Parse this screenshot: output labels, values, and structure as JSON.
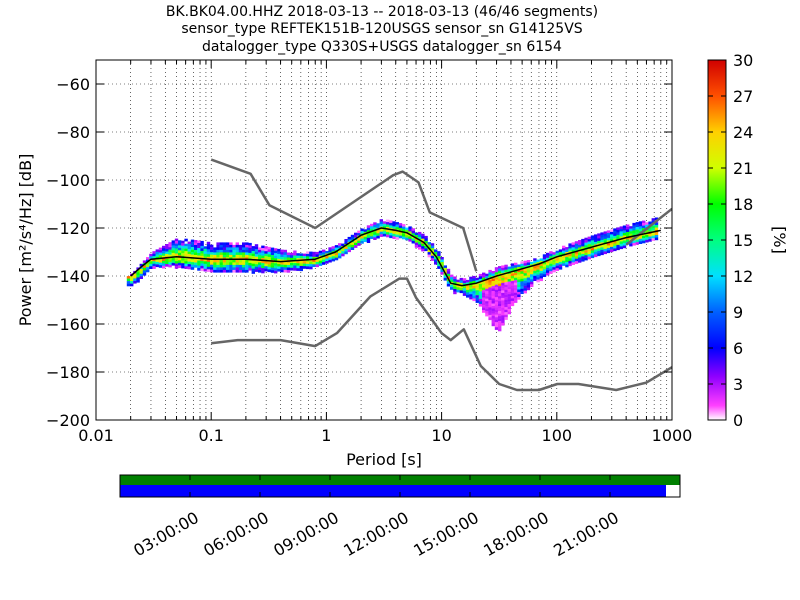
{
  "chart_data": {
    "type": "heatmap",
    "title_lines": [
      "BK.BK04.00.HHZ   2018-03-13 -- 2018-03-13  (46/46 segments)",
      "sensor_type REFTEK151B-120USGS sensor_sn G14125VS",
      "datalogger_type Q330S+USGS datalogger_sn 6154"
    ],
    "xlabel": "Period [s]",
    "ylabel": "Power [m²/s⁴/Hz] [dB]",
    "xscale": "log",
    "xlim": [
      0.01,
      1000
    ],
    "ylim": [
      -200,
      -50
    ],
    "x_ticks": [
      {
        "v": 0.01,
        "label": "0.01"
      },
      {
        "v": 0.1,
        "label": "0.1"
      },
      {
        "v": 1,
        "label": "1"
      },
      {
        "v": 10,
        "label": "10"
      },
      {
        "v": 100,
        "label": "100"
      },
      {
        "v": 1000,
        "label": "1000"
      }
    ],
    "y_ticks": [
      {
        "v": -60,
        "label": "−60"
      },
      {
        "v": -80,
        "label": "−80"
      },
      {
        "v": -100,
        "label": "−100"
      },
      {
        "v": -120,
        "label": "−120"
      },
      {
        "v": -140,
        "label": "−140"
      },
      {
        "v": -160,
        "label": "−160"
      },
      {
        "v": -180,
        "label": "−180"
      },
      {
        "v": -200,
        "label": "−200"
      }
    ],
    "grid": true,
    "colorbar": {
      "label": "[%]",
      "min": 0,
      "max": 30,
      "ticks": [
        {
          "v": 0,
          "label": "0"
        },
        {
          "v": 3,
          "label": "3"
        },
        {
          "v": 6,
          "label": "6"
        },
        {
          "v": 9,
          "label": "9"
        },
        {
          "v": 12,
          "label": "12"
        },
        {
          "v": 15,
          "label": "15"
        },
        {
          "v": 18,
          "label": "18"
        },
        {
          "v": 21,
          "label": "21"
        },
        {
          "v": 24,
          "label": "24"
        },
        {
          "v": 27,
          "label": "27"
        },
        {
          "v": 30,
          "label": "30"
        }
      ]
    },
    "series": [
      {
        "role": "noise-model-high",
        "color": "#666666",
        "x": [
          0.1,
          0.22,
          0.32,
          0.8,
          3.8,
          4.6,
          6.3,
          7.9,
          15.4,
          20
        ],
        "y": [
          -91.5,
          -97.4,
          -110.5,
          -120,
          -98,
          -96.5,
          -101,
          -113.5,
          -120,
          -138
        ]
      },
      {
        "role": "noise-model-high-tail",
        "color": "#666666",
        "x": [
          400,
          1000
        ],
        "y": [
          -127,
          -112
        ]
      },
      {
        "role": "noise-model-low",
        "color": "#666666",
        "x": [
          0.1,
          0.17,
          0.4,
          0.8,
          1.24,
          2.4,
          4.3,
          5,
          6,
          10,
          12,
          15.6,
          21.9,
          31.6,
          45,
          70,
          101,
          154,
          328,
          600,
          1000
        ],
        "y": [
          -168,
          -166.7,
          -166.7,
          -169.2,
          -163.7,
          -148.6,
          -141.1,
          -141.1,
          -149,
          -163.8,
          -166.7,
          -162.2,
          -177.5,
          -185,
          -187.5,
          -187.5,
          -185,
          -185,
          -187.5,
          -184.4,
          -178
        ]
      },
      {
        "role": "mode",
        "color": "#000000",
        "x": [
          0.02,
          0.025,
          0.03,
          0.05,
          0.1,
          0.2,
          0.4,
          0.8,
          1.2,
          2,
          3,
          4,
          5,
          7,
          9,
          12,
          15,
          20,
          30,
          50,
          70,
          100,
          200,
          400,
          800
        ],
        "y": [
          -140,
          -136,
          -133,
          -132,
          -133,
          -133,
          -134,
          -133,
          -130,
          -123,
          -120,
          -121,
          -122,
          -126,
          -132,
          -143,
          -144,
          -143,
          -140,
          -137,
          -135,
          -132,
          -128,
          -124,
          -121
        ]
      }
    ],
    "density_upper_offset": [
      [
        0.02,
        1
      ],
      [
        0.03,
        3
      ],
      [
        0.05,
        8
      ],
      [
        0.1,
        7
      ],
      [
        0.2,
        7
      ],
      [
        0.4,
        5
      ],
      [
        0.8,
        3
      ],
      [
        2,
        3
      ],
      [
        3,
        4
      ],
      [
        5,
        3
      ],
      [
        9,
        3
      ],
      [
        15,
        3
      ],
      [
        30,
        4
      ],
      [
        60,
        3
      ],
      [
        200,
        5
      ],
      [
        800,
        6
      ]
    ],
    "density_lower_offset": [
      [
        0.02,
        4
      ],
      [
        0.03,
        3
      ],
      [
        0.05,
        4
      ],
      [
        0.1,
        5
      ],
      [
        0.2,
        5
      ],
      [
        0.4,
        4
      ],
      [
        0.8,
        3
      ],
      [
        2,
        3
      ],
      [
        3,
        3
      ],
      [
        5,
        3
      ],
      [
        9,
        4
      ],
      [
        15,
        3
      ],
      [
        20,
        8
      ],
      [
        30,
        23
      ],
      [
        40,
        14
      ],
      [
        60,
        7
      ],
      [
        100,
        5
      ],
      [
        200,
        4
      ],
      [
        400,
        3
      ],
      [
        800,
        3
      ]
    ],
    "timeline": {
      "labels": [
        "03:00:00",
        "06:00:00",
        "09:00:00",
        "12:00:00",
        "15:00:00",
        "18:00:00",
        "21:00:00"
      ],
      "tick_hours": [
        3,
        6,
        9,
        12,
        15,
        18,
        21
      ],
      "span_hours": 24,
      "top_bar_coverage": 1.0,
      "bottom_bar_coverage": 0.975,
      "top_color": "#008000",
      "bottom_color": "#0000ff"
    }
  }
}
